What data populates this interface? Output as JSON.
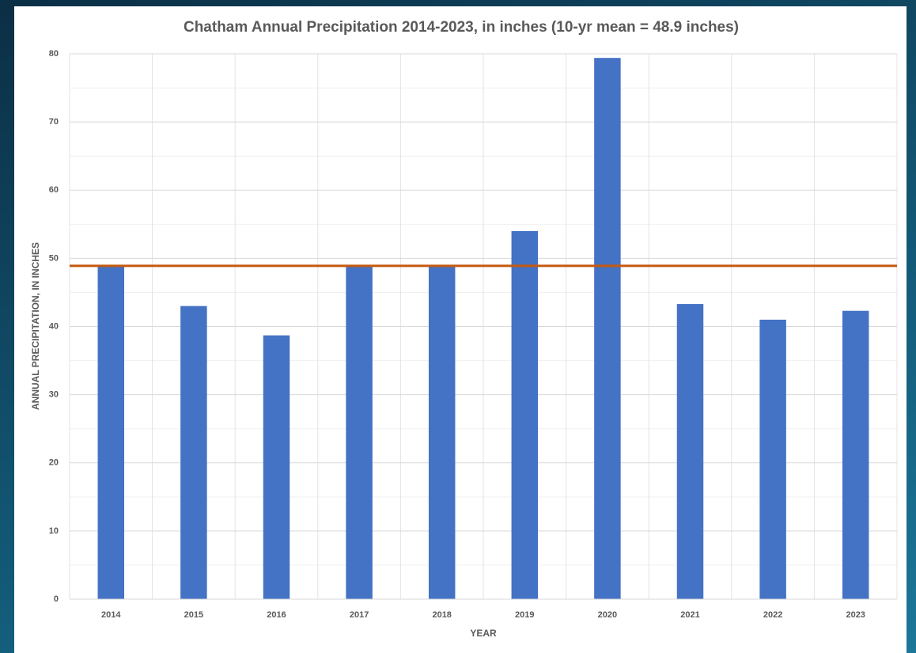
{
  "chart_data": {
    "type": "bar",
    "title": "Chatham Annual Precipitation 2014-2023, in inches (10-yr mean = 48.9 inches)",
    "x_label": "YEAR",
    "y_label": "ANNUAL PRECIPITATION, IN INCHES",
    "categories": [
      "2014",
      "2015",
      "2016",
      "2017",
      "2018",
      "2019",
      "2020",
      "2021",
      "2022",
      "2023"
    ],
    "values": [
      48.8,
      43.0,
      38.7,
      48.9,
      48.9,
      54.0,
      79.4,
      43.3,
      41.0,
      42.3
    ],
    "color": "#4472c4",
    "mean_line": {
      "value": 48.9,
      "color": "#c55a11"
    },
    "ylim": [
      0,
      80
    ],
    "yticks": [
      0,
      10,
      20,
      30,
      40,
      50,
      60,
      70,
      80
    ],
    "yminorticks": [
      5,
      15,
      25,
      35,
      45,
      55,
      65,
      75
    ],
    "grid": true
  }
}
